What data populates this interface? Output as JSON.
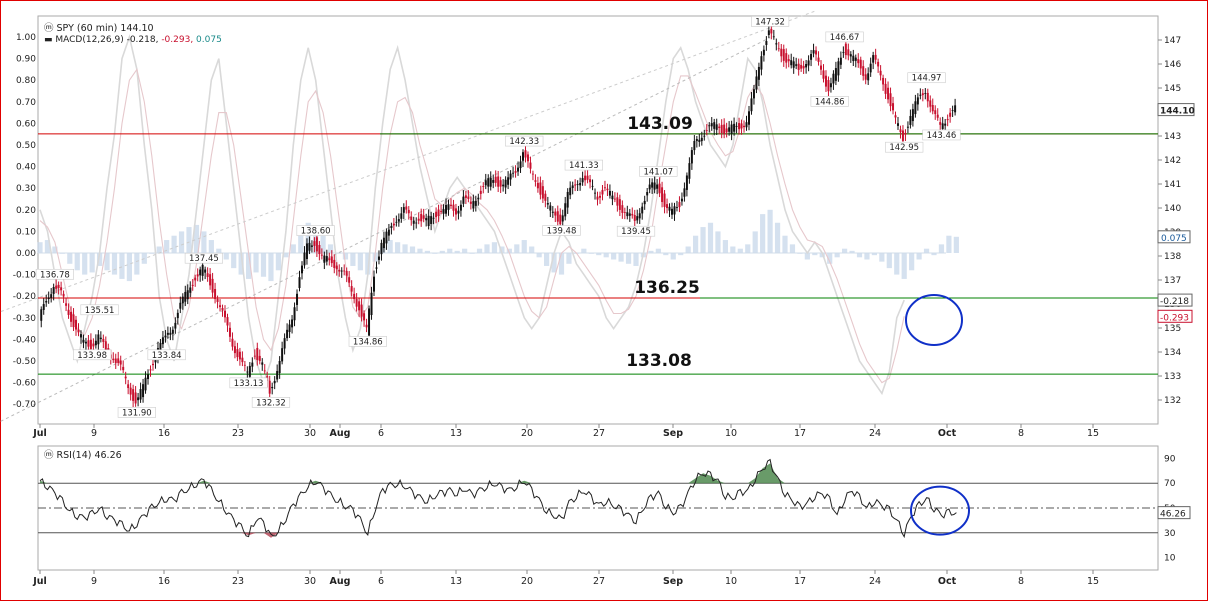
{
  "chart_data": [
    {
      "type": "candlestick",
      "header": {
        "symbol": "SPY (60 min) 144.10",
        "macd_label": "MACD(12,26,9)",
        "macd_val": "-0.218",
        "signal_val": "-0.293",
        "hist_val": "0.075"
      },
      "x_ticks": [
        "Jul",
        "9",
        "16",
        "23",
        "30",
        "Aug",
        "6",
        "13",
        "20",
        "27",
        "Sep",
        "10",
        "17",
        "24",
        "Oct",
        "8",
        "15"
      ],
      "bold_x_ticks": [
        "Jul",
        "Aug",
        "Sep",
        "Oct"
      ],
      "price_axis": {
        "min": 131,
        "max": 148,
        "ticks": [
          "132",
          "133",
          "134",
          "135",
          "136",
          "137",
          "138",
          "139",
          "140",
          "141",
          "142",
          "143",
          "144",
          "145",
          "146",
          "147"
        ]
      },
      "macd_axis": {
        "ticks": [
          "1.00",
          "0.90",
          "0.80",
          "0.70",
          "0.60",
          "0.50",
          "0.40",
          "0.30",
          "0.20",
          "0.10",
          "0.00",
          "-0.10",
          "-0.20",
          "-0.30",
          "-0.40",
          "-0.50",
          "-0.60",
          "-0.70"
        ]
      },
      "price_path": [
        {
          "x": 0,
          "y": 135.3
        },
        {
          "x": 1,
          "y": 136.2
        },
        {
          "x": 2,
          "y": 136.78
        },
        {
          "x": 3,
          "y": 136.4
        },
        {
          "x": 4,
          "y": 135.7
        },
        {
          "x": 5,
          "y": 134.9
        },
        {
          "x": 6,
          "y": 134.4
        },
        {
          "x": 7,
          "y": 134.3
        },
        {
          "x": 8,
          "y": 134.6
        },
        {
          "x": 9,
          "y": 134.1
        },
        {
          "x": 10,
          "y": 133.8
        },
        {
          "x": 11,
          "y": 133.3
        },
        {
          "x": 12,
          "y": 132.6
        },
        {
          "x": 13,
          "y": 131.9
        },
        {
          "x": 14,
          "y": 132.5
        },
        {
          "x": 15,
          "y": 133.4
        },
        {
          "x": 16,
          "y": 134.1
        },
        {
          "x": 17,
          "y": 134.6
        },
        {
          "x": 18,
          "y": 135.1
        },
        {
          "x": 19,
          "y": 135.9
        },
        {
          "x": 20,
          "y": 136.6
        },
        {
          "x": 21,
          "y": 137.1
        },
        {
          "x": 22,
          "y": 137.45
        },
        {
          "x": 23,
          "y": 136.9
        },
        {
          "x": 24,
          "y": 136.1
        },
        {
          "x": 25,
          "y": 135.3
        },
        {
          "x": 26,
          "y": 134.4
        },
        {
          "x": 27,
          "y": 133.6
        },
        {
          "x": 28,
          "y": 133.13
        },
        {
          "x": 29,
          "y": 134.0
        },
        {
          "x": 30,
          "y": 133.4
        },
        {
          "x": 31,
          "y": 132.32
        },
        {
          "x": 32,
          "y": 133.3
        },
        {
          "x": 33,
          "y": 134.4
        },
        {
          "x": 34,
          "y": 135.5
        },
        {
          "x": 35,
          "y": 137.1
        },
        {
          "x": 36,
          "y": 138.4
        },
        {
          "x": 37,
          "y": 138.6
        },
        {
          "x": 38,
          "y": 137.9
        },
        {
          "x": 39,
          "y": 137.8
        },
        {
          "x": 40,
          "y": 137.6
        },
        {
          "x": 41,
          "y": 137.2
        },
        {
          "x": 42,
          "y": 136.6
        },
        {
          "x": 43,
          "y": 135.8
        },
        {
          "x": 44,
          "y": 134.86
        },
        {
          "x": 45,
          "y": 137.3
        },
        {
          "x": 46,
          "y": 138.5
        },
        {
          "x": 47,
          "y": 139.0
        },
        {
          "x": 48,
          "y": 139.6
        },
        {
          "x": 49,
          "y": 139.9
        },
        {
          "x": 50,
          "y": 139.5
        },
        {
          "x": 51,
          "y": 139.6
        },
        {
          "x": 52,
          "y": 139.4
        },
        {
          "x": 53,
          "y": 139.7
        },
        {
          "x": 54,
          "y": 139.9
        },
        {
          "x": 55,
          "y": 140.0
        },
        {
          "x": 56,
          "y": 139.9
        },
        {
          "x": 57,
          "y": 140.4
        },
        {
          "x": 58,
          "y": 140.1
        },
        {
          "x": 59,
          "y": 140.6
        },
        {
          "x": 60,
          "y": 141.0
        },
        {
          "x": 61,
          "y": 141.2
        },
        {
          "x": 62,
          "y": 141.0
        },
        {
          "x": 63,
          "y": 141.1
        },
        {
          "x": 64,
          "y": 141.6
        },
        {
          "x": 65,
          "y": 142.33
        },
        {
          "x": 66,
          "y": 141.5
        },
        {
          "x": 67,
          "y": 141.0
        },
        {
          "x": 68,
          "y": 140.2
        },
        {
          "x": 69,
          "y": 139.8
        },
        {
          "x": 70,
          "y": 139.48
        },
        {
          "x": 71,
          "y": 140.5
        },
        {
          "x": 72,
          "y": 141.0
        },
        {
          "x": 73,
          "y": 141.33
        },
        {
          "x": 74,
          "y": 140.9
        },
        {
          "x": 75,
          "y": 140.5
        },
        {
          "x": 76,
          "y": 140.8
        },
        {
          "x": 77,
          "y": 140.4
        },
        {
          "x": 78,
          "y": 140.1
        },
        {
          "x": 79,
          "y": 139.7
        },
        {
          "x": 80,
          "y": 139.45
        },
        {
          "x": 81,
          "y": 140.2
        },
        {
          "x": 82,
          "y": 140.8
        },
        {
          "x": 83,
          "y": 141.07
        },
        {
          "x": 84,
          "y": 140.1
        },
        {
          "x": 85,
          "y": 139.8
        },
        {
          "x": 86,
          "y": 140.2
        },
        {
          "x": 87,
          "y": 141.3
        },
        {
          "x": 88,
          "y": 142.7
        },
        {
          "x": 89,
          "y": 143.1
        },
        {
          "x": 90,
          "y": 143.3
        },
        {
          "x": 91,
          "y": 143.5
        },
        {
          "x": 92,
          "y": 143.2
        },
        {
          "x": 93,
          "y": 143.3
        },
        {
          "x": 94,
          "y": 143.4
        },
        {
          "x": 95,
          "y": 143.6
        },
        {
          "x": 96,
          "y": 144.8
        },
        {
          "x": 97,
          "y": 146.5
        },
        {
          "x": 98,
          "y": 147.32
        },
        {
          "x": 99,
          "y": 146.8
        },
        {
          "x": 100,
          "y": 146.3
        },
        {
          "x": 101,
          "y": 146.0
        },
        {
          "x": 102,
          "y": 145.8
        },
        {
          "x": 103,
          "y": 146.1
        },
        {
          "x": 104,
          "y": 146.4
        },
        {
          "x": 105,
          "y": 145.9
        },
        {
          "x": 106,
          "y": 144.86
        },
        {
          "x": 107,
          "y": 145.7
        },
        {
          "x": 108,
          "y": 146.67
        },
        {
          "x": 109,
          "y": 146.3
        },
        {
          "x": 110,
          "y": 146.0
        },
        {
          "x": 111,
          "y": 145.5
        },
        {
          "x": 112,
          "y": 146.2
        },
        {
          "x": 113,
          "y": 145.6
        },
        {
          "x": 114,
          "y": 144.6
        },
        {
          "x": 115,
          "y": 143.6
        },
        {
          "x": 116,
          "y": 142.95
        },
        {
          "x": 117,
          "y": 143.8
        },
        {
          "x": 118,
          "y": 144.5
        },
        {
          "x": 119,
          "y": 144.97
        },
        {
          "x": 120,
          "y": 143.9
        },
        {
          "x": 121,
          "y": 143.46
        },
        {
          "x": 122,
          "y": 143.8
        },
        {
          "x": 123,
          "y": 144.1
        }
      ],
      "price_labels": [
        {
          "x": 2,
          "y": 136.78,
          "text": "136.78",
          "pos": "above"
        },
        {
          "x": 7,
          "y": 134.3,
          "text": "133.98",
          "pos": "below"
        },
        {
          "x": 8,
          "y": 135.3,
          "text": "135.51",
          "pos": "above"
        },
        {
          "x": 13,
          "y": 131.9,
          "text": "131.90",
          "pos": "below"
        },
        {
          "x": 17,
          "y": 134.3,
          "text": "133.84",
          "pos": "below"
        },
        {
          "x": 22,
          "y": 137.45,
          "text": "137.45",
          "pos": "above"
        },
        {
          "x": 28,
          "y": 133.13,
          "text": "133.13",
          "pos": "below"
        },
        {
          "x": 31,
          "y": 132.32,
          "text": "132.32",
          "pos": "below"
        },
        {
          "x": 37,
          "y": 138.6,
          "text": "138.60",
          "pos": "above"
        },
        {
          "x": 44,
          "y": 134.86,
          "text": "134.86",
          "pos": "below"
        },
        {
          "x": 65,
          "y": 142.33,
          "text": "142.33",
          "pos": "above"
        },
        {
          "x": 70,
          "y": 139.48,
          "text": "139.48",
          "pos": "below"
        },
        {
          "x": 73,
          "y": 141.33,
          "text": "141.33",
          "pos": "above"
        },
        {
          "x": 80,
          "y": 139.45,
          "text": "139.45",
          "pos": "below"
        },
        {
          "x": 83,
          "y": 141.07,
          "text": "141.07",
          "pos": "above"
        },
        {
          "x": 98,
          "y": 147.32,
          "text": "147.32",
          "pos": "above"
        },
        {
          "x": 106,
          "y": 144.86,
          "text": "144.86",
          "pos": "below"
        },
        {
          "x": 108,
          "y": 146.67,
          "text": "146.67",
          "pos": "above"
        },
        {
          "x": 116,
          "y": 142.95,
          "text": "142.95",
          "pos": "below"
        },
        {
          "x": 119,
          "y": 144.97,
          "text": "144.97",
          "pos": "above"
        },
        {
          "x": 121,
          "y": 143.46,
          "text": "143.46",
          "pos": "below"
        }
      ],
      "levels": [
        {
          "value": 143.09,
          "label": "143.09",
          "color": "#d40000"
        },
        {
          "value": 136.25,
          "label": "136.25",
          "color": "#d40000"
        },
        {
          "value": 133.08,
          "label": "133.08",
          "color": "#008000"
        }
      ],
      "macd_hist": [
        0.05,
        0.06,
        0.03,
        0.0,
        -0.05,
        -0.08,
        -0.1,
        -0.09,
        -0.06,
        -0.08,
        -0.1,
        -0.12,
        -0.13,
        -0.1,
        -0.05,
        0.0,
        0.03,
        0.06,
        0.08,
        0.1,
        0.12,
        0.13,
        0.1,
        0.06,
        0.02,
        -0.03,
        -0.07,
        -0.1,
        -0.12,
        -0.09,
        -0.11,
        -0.13,
        -0.08,
        -0.02,
        0.04,
        0.1,
        0.14,
        0.12,
        0.08,
        0.04,
        0.0,
        -0.03,
        -0.06,
        -0.08,
        -0.1,
        -0.04,
        0.03,
        0.06,
        0.05,
        0.04,
        0.03,
        0.02,
        0.01,
        0.0,
        0.01,
        0.02,
        0.01,
        0.02,
        0.0,
        0.02,
        0.04,
        0.05,
        0.03,
        0.02,
        0.04,
        0.06,
        0.03,
        -0.02,
        -0.06,
        -0.09,
        -0.1,
        -0.05,
        0.0,
        0.02,
        0.0,
        -0.01,
        -0.02,
        -0.03,
        -0.04,
        -0.05,
        -0.06,
        -0.02,
        0.01,
        0.02,
        -0.01,
        -0.03,
        -0.01,
        0.03,
        0.08,
        0.12,
        0.14,
        0.1,
        0.06,
        0.03,
        0.02,
        0.04,
        0.1,
        0.18,
        0.2,
        0.14,
        0.08,
        0.04,
        0.0,
        -0.03,
        -0.01,
        -0.02,
        -0.05,
        -0.02,
        0.02,
        0.01,
        -0.02,
        -0.03,
        -0.01,
        -0.04,
        -0.07,
        -0.1,
        -0.12,
        -0.08,
        -0.03,
        0.02,
        -0.01,
        0.04,
        0.08,
        0.075
      ],
      "macd_line": [
        0.2,
        0.1,
        -0.1,
        -0.3,
        -0.4,
        -0.5,
        -0.35,
        -0.2,
        0.0,
        0.3,
        0.55,
        0.9,
        1.0,
        0.85,
        0.5,
        0.2,
        -0.2,
        -0.4,
        -0.5,
        -0.3,
        -0.1,
        0.2,
        0.5,
        0.8,
        0.9,
        0.6,
        0.3,
        0.0,
        -0.3,
        -0.5,
        -0.6,
        -0.5,
        -0.2,
        0.1,
        0.5,
        0.8,
        0.95,
        0.8,
        0.5,
        0.2,
        -0.1,
        -0.3,
        -0.45,
        -0.35,
        -0.1,
        0.3,
        0.6,
        0.85,
        0.95,
        0.8,
        0.6,
        0.4,
        0.25,
        0.1,
        0.2,
        0.3,
        0.35,
        0.3,
        0.25,
        0.2,
        0.15,
        0.1,
        0.0,
        -0.1,
        -0.2,
        -0.3,
        -0.35,
        -0.3,
        -0.15,
        0.0,
        0.1,
        0.05,
        -0.05,
        -0.1,
        -0.15,
        -0.2,
        -0.3,
        -0.35,
        -0.3,
        -0.25,
        -0.15,
        0.0,
        0.2,
        0.45,
        0.7,
        0.9,
        0.95,
        0.85,
        0.7,
        0.6,
        0.5,
        0.45,
        0.4,
        0.5,
        0.7,
        0.9,
        0.85,
        0.7,
        0.5,
        0.35,
        0.2,
        0.1,
        0.05,
        0.0,
        0.05,
        0.0,
        -0.1,
        -0.2,
        -0.3,
        -0.4,
        -0.5,
        -0.55,
        -0.6,
        -0.65,
        -0.55,
        -0.3,
        -0.218
      ],
      "signal_line": [
        0.15,
        0.12,
        0.05,
        -0.1,
        -0.25,
        -0.35,
        -0.38,
        -0.3,
        -0.15,
        0.05,
        0.3,
        0.6,
        0.8,
        0.85,
        0.7,
        0.45,
        0.15,
        -0.1,
        -0.3,
        -0.35,
        -0.25,
        -0.05,
        0.2,
        0.45,
        0.65,
        0.65,
        0.5,
        0.25,
        0.0,
        -0.25,
        -0.4,
        -0.45,
        -0.35,
        -0.15,
        0.15,
        0.45,
        0.7,
        0.75,
        0.65,
        0.45,
        0.2,
        -0.05,
        -0.25,
        -0.3,
        -0.25,
        0.0,
        0.3,
        0.55,
        0.7,
        0.72,
        0.65,
        0.5,
        0.38,
        0.25,
        0.22,
        0.25,
        0.28,
        0.3,
        0.27,
        0.23,
        0.2,
        0.15,
        0.08,
        0.0,
        -0.1,
        -0.2,
        -0.27,
        -0.3,
        -0.25,
        -0.12,
        0.0,
        0.03,
        0.0,
        -0.05,
        -0.1,
        -0.15,
        -0.22,
        -0.28,
        -0.28,
        -0.26,
        -0.2,
        -0.08,
        0.08,
        0.3,
        0.5,
        0.7,
        0.82,
        0.82,
        0.74,
        0.65,
        0.56,
        0.5,
        0.45,
        0.47,
        0.58,
        0.72,
        0.78,
        0.73,
        0.6,
        0.45,
        0.32,
        0.2,
        0.12,
        0.06,
        0.05,
        0.03,
        -0.04,
        -0.12,
        -0.22,
        -0.32,
        -0.42,
        -0.5,
        -0.55,
        -0.6,
        -0.58,
        -0.45,
        -0.293
      ],
      "trendlines": [
        {
          "x1": -6,
          "y1": 131.0,
          "x2": 98,
          "y2": 147.1,
          "color": "#bbbbbb"
        },
        {
          "x1": -6,
          "y1": 135.6,
          "x2": 104,
          "y2": 148.2,
          "color": "#cccccc"
        }
      ]
    },
    {
      "type": "line",
      "title": "RSI(14) 46.26",
      "x_ticks": [
        "Jul",
        "9",
        "16",
        "23",
        "30",
        "Aug",
        "6",
        "13",
        "20",
        "27",
        "Sep",
        "10",
        "17",
        "24",
        "Oct",
        "8",
        "15"
      ],
      "y_ticks": [
        "90",
        "70",
        "50",
        "30",
        "10"
      ],
      "overbought": 70,
      "oversold": 30,
      "midline": 50,
      "last_value": "46.26",
      "values": [
        72,
        68,
        62,
        55,
        48,
        44,
        42,
        45,
        50,
        44,
        40,
        36,
        32,
        38,
        44,
        50,
        55,
        58,
        56,
        62,
        66,
        70,
        72,
        64,
        56,
        48,
        40,
        34,
        28,
        42,
        38,
        26,
        32,
        42,
        52,
        60,
        68,
        72,
        66,
        60,
        56,
        52,
        48,
        40,
        30,
        50,
        64,
        68,
        70,
        68,
        62,
        58,
        56,
        60,
        62,
        64,
        62,
        66,
        60,
        64,
        68,
        70,
        66,
        64,
        68,
        72,
        64,
        56,
        48,
        44,
        40,
        54,
        60,
        64,
        58,
        52,
        56,
        52,
        48,
        44,
        40,
        50,
        58,
        62,
        52,
        46,
        50,
        62,
        74,
        78,
        76,
        72,
        60,
        58,
        62,
        64,
        74,
        82,
        86,
        74,
        62,
        56,
        50,
        54,
        60,
        62,
        56,
        44,
        58,
        64,
        58,
        50,
        56,
        52,
        48,
        40,
        30,
        44,
        52,
        58,
        50,
        44,
        46,
        46.26
      ],
      "circle_value": 46.26
    }
  ]
}
